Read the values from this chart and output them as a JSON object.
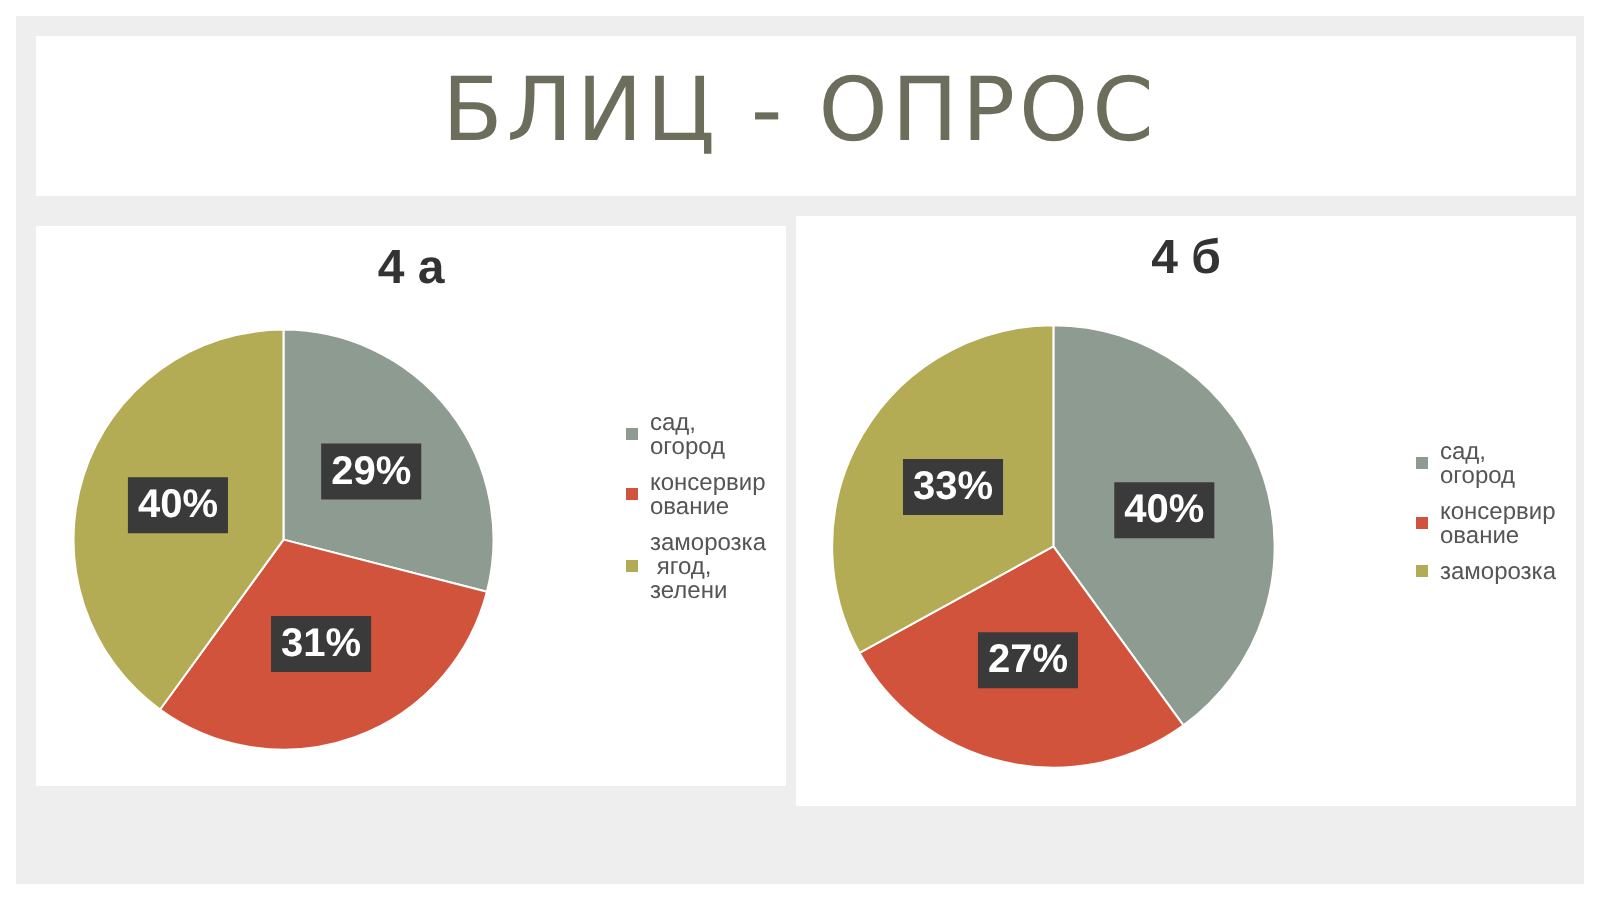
{
  "chart_data": [
    {
      "type": "pie",
      "title": "4 а",
      "annotations": [
        "БЛИЦ - ОПРОС"
      ],
      "categories": [
        "сад, огород",
        "консервирование",
        "заморозка ягод, зелени"
      ],
      "values": [
        29,
        31,
        40
      ],
      "colors": [
        "#8e9b90",
        "#d2533b",
        "#b3ac55"
      ],
      "value_labels": [
        "29%",
        "31%",
        "40%"
      ],
      "legend": "right"
    },
    {
      "type": "pie",
      "title": "4 б",
      "categories": [
        "сад, огород",
        "консервирование",
        "заморозка"
      ],
      "values": [
        40,
        27,
        33
      ],
      "colors": [
        "#8e9b90",
        "#d2533b",
        "#b3ac55"
      ],
      "value_labels": [
        "40%",
        "27%",
        "33%"
      ],
      "legend": "right"
    }
  ]
}
